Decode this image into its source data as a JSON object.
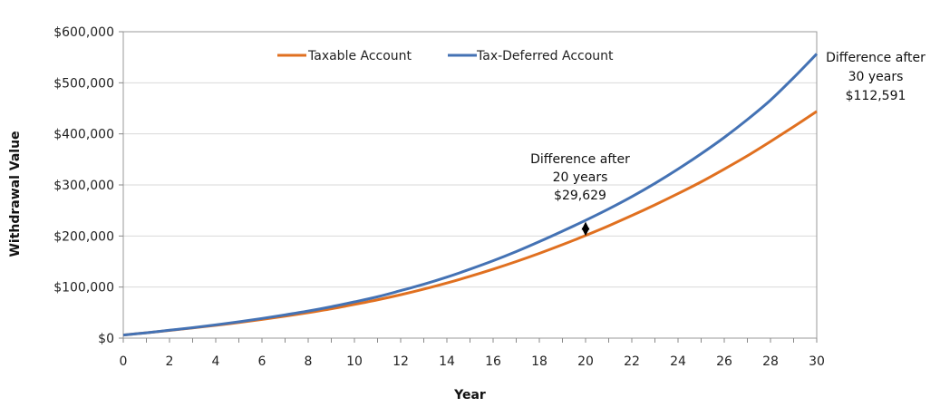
{
  "chart_data": {
    "type": "line",
    "title": "",
    "xlabel": "Year",
    "ylabel": "Withdrawal Value",
    "xlim": [
      0,
      30
    ],
    "ylim": [
      0,
      600000
    ],
    "x_ticks": [
      0,
      2,
      4,
      6,
      8,
      10,
      12,
      14,
      16,
      18,
      20,
      22,
      24,
      26,
      28,
      30
    ],
    "y_ticks": [
      0,
      100000,
      200000,
      300000,
      400000,
      500000,
      600000
    ],
    "y_tick_labels": [
      "$0",
      "$100,000",
      "$200,000",
      "$300,000",
      "$400,000",
      "$500,000",
      "$600,000"
    ],
    "grid": "horizontal",
    "legend_position": "top",
    "x": [
      0,
      1,
      2,
      3,
      4,
      5,
      6,
      7,
      8,
      9,
      10,
      11,
      12,
      13,
      14,
      15,
      16,
      17,
      18,
      19,
      20,
      21,
      22,
      23,
      24,
      25,
      26,
      27,
      28,
      29,
      30
    ],
    "series": [
      {
        "name": "Taxable Account",
        "color": "#E07020",
        "values": [
          6000,
          10500,
          15000,
          20000,
          25000,
          30500,
          36500,
          43000,
          50000,
          57500,
          66000,
          75000,
          85000,
          96000,
          108000,
          121000,
          135000,
          150000,
          166000,
          183000,
          201000,
          220000,
          240000,
          261000,
          283000,
          306000,
          331000,
          357000,
          385000,
          414000,
          444000
        ]
      },
      {
        "name": "Tax-Deferred Account",
        "color": "#4472B4",
        "values": [
          6000,
          10500,
          15500,
          20500,
          26000,
          32000,
          38500,
          45500,
          53000,
          61500,
          71000,
          81000,
          93000,
          105500,
          119500,
          135000,
          151500,
          169500,
          189000,
          209500,
          230629,
          253000,
          277000,
          303000,
          331000,
          361000,
          393000,
          428000,
          466000,
          510000,
          556591
        ]
      }
    ],
    "annotations": [
      {
        "name": "diff-20",
        "lines": [
          "Difference after",
          "20 years",
          "$29,629"
        ],
        "x": 20
      },
      {
        "name": "diff-30",
        "lines": [
          "Difference after",
          "30 years",
          "$112,591"
        ],
        "x": 30
      }
    ],
    "colors": {
      "grid": "#D9D9D9",
      "axis": "#888888"
    }
  }
}
